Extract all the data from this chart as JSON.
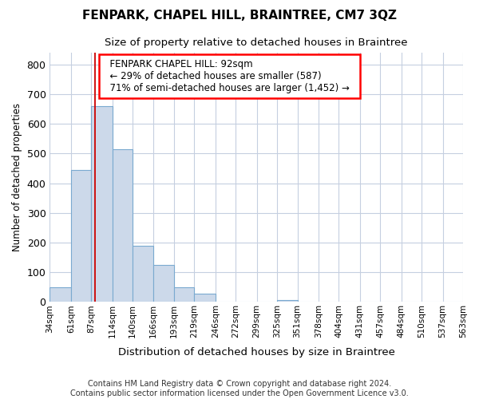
{
  "title": "FENPARK, CHAPEL HILL, BRAINTREE, CM7 3QZ",
  "subtitle": "Size of property relative to detached houses in Braintree",
  "xlabel": "Distribution of detached houses by size in Braintree",
  "ylabel": "Number of detached properties",
  "footer_line1": "Contains HM Land Registry data © Crown copyright and database right 2024.",
  "footer_line2": "Contains public sector information licensed under the Open Government Licence v3.0.",
  "annotation_line1": "FENPARK CHAPEL HILL: 92sqm",
  "annotation_line2": "← 29% of detached houses are smaller (587)",
  "annotation_line3": "71% of semi-detached houses are larger (1,452) →",
  "property_size": 92,
  "bar_color": "#ccd9ea",
  "bar_edge_color": "#7aaad0",
  "marker_color": "#cc0000",
  "background_color": "#ffffff",
  "grid_color": "#c5cfe0",
  "bins": [
    34,
    61,
    87,
    114,
    140,
    166,
    193,
    219,
    246,
    272,
    299,
    325,
    351,
    378,
    404,
    431,
    457,
    484,
    510,
    537,
    563
  ],
  "values": [
    50,
    445,
    660,
    515,
    190,
    125,
    50,
    27,
    0,
    0,
    0,
    8,
    0,
    0,
    0,
    0,
    0,
    0,
    0,
    0
  ],
  "ylim": [
    0,
    840
  ],
  "yticks": [
    0,
    100,
    200,
    300,
    400,
    500,
    600,
    700,
    800
  ]
}
